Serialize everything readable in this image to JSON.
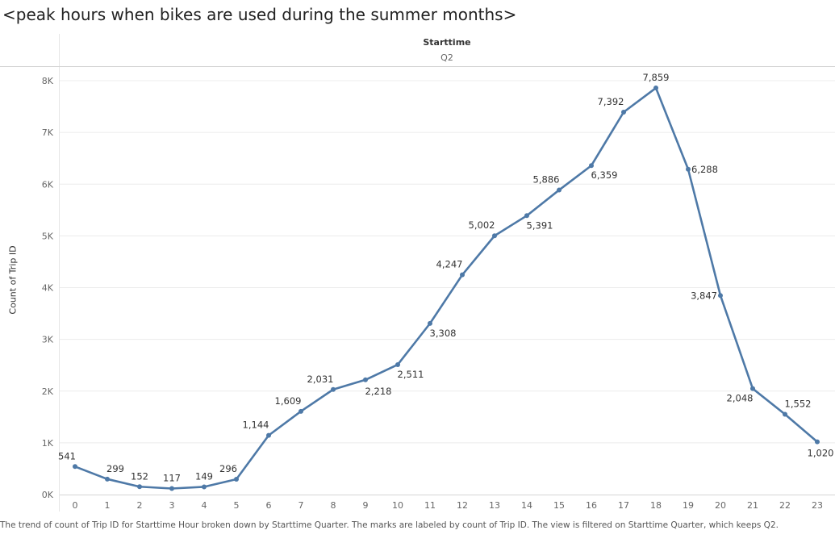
{
  "title": "<peak hours when bikes are used during the summer months>",
  "facet": {
    "field": "Starttime",
    "value": "Q2"
  },
  "caption": "The trend of count of Trip ID for Starttime Hour broken down by Starttime Quarter.  The marks are labeled by count of Trip ID. The view is filtered on Starttime Quarter, which keeps Q2.",
  "colors": {
    "line": "#4e79a7",
    "grid": "#ececec",
    "axis": "#d4d4d4"
  },
  "chart_data": {
    "type": "line",
    "title": "<peak hours when bikes are used during the summer months>",
    "xlabel": "",
    "ylabel": "Count of Trip ID",
    "x": [
      0,
      1,
      2,
      3,
      4,
      5,
      6,
      7,
      8,
      9,
      10,
      11,
      12,
      13,
      14,
      15,
      16,
      17,
      18,
      19,
      20,
      21,
      22,
      23
    ],
    "series": [
      {
        "values": [
          541,
          299,
          152,
          117,
          149,
          296,
          1144,
          1609,
          2031,
          2218,
          2511,
          3308,
          4247,
          5002,
          5391,
          5886,
          6359,
          7392,
          7859,
          6288,
          3847,
          2048,
          1552,
          1020
        ]
      }
    ],
    "data_labels": [
      "541",
      "299",
      "152",
      "117",
      "149",
      "296",
      "1,144",
      "1,609",
      "2,031",
      "2,218",
      "2,511",
      "3,308",
      "4,247",
      "5,002",
      "5,391",
      "5,886",
      "6,359",
      "7,392",
      "7,859",
      "6,288",
      "3,847",
      "2,048",
      "1,552",
      "1,020"
    ],
    "y_ticks": [
      0,
      1000,
      2000,
      3000,
      4000,
      5000,
      6000,
      7000,
      8000
    ],
    "y_tick_labels": [
      "0K",
      "1K",
      "2K",
      "3K",
      "4K",
      "5K",
      "6K",
      "7K",
      "8K"
    ],
    "ylim": [
      0,
      8000
    ],
    "grid": true
  }
}
